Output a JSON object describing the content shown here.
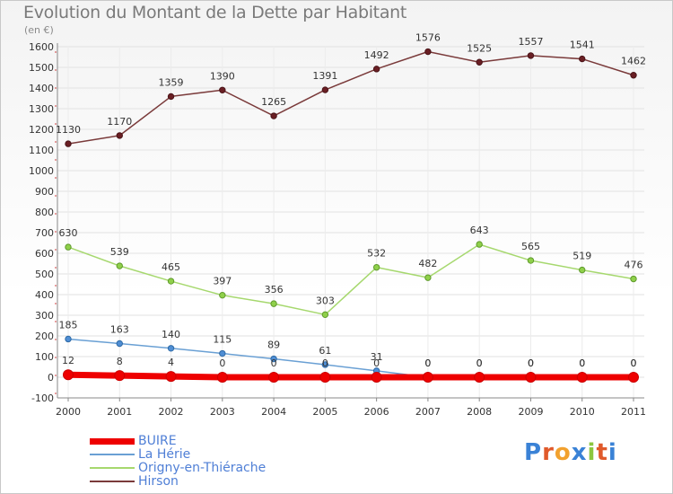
{
  "header": {
    "title": "Evolution du Montant de la Dette par Habitant",
    "subtitle": "(en €)"
  },
  "logo": {
    "letters": [
      "P",
      "r",
      "o",
      "x",
      "i",
      "t",
      "i"
    ],
    "colors": [
      "#3a82d6",
      "#e05a2b",
      "#f2a12e",
      "#3a82d6",
      "#8cc63f",
      "#e05a2b",
      "#3a82d6"
    ]
  },
  "chart_data": {
    "type": "line",
    "title": "Evolution du Montant de la Dette par Habitant",
    "ylabel": "(en €)",
    "xlabel": "",
    "ylim": [
      -100,
      1600
    ],
    "yticks": [
      -100,
      0,
      100,
      200,
      300,
      400,
      500,
      600,
      700,
      800,
      900,
      1000,
      1100,
      1200,
      1300,
      1400,
      1500,
      1600
    ],
    "x": [
      "2000",
      "2001",
      "2002",
      "2003",
      "2004",
      "2005",
      "2006",
      "2007",
      "2008",
      "2009",
      "2010",
      "2011"
    ],
    "grid": true,
    "legend_position": "bottom-left",
    "series": [
      {
        "name": "BUIRE",
        "color": "#ee0000",
        "values": [
          12,
          8,
          4,
          0,
          0,
          0,
          0,
          0,
          0,
          0,
          0,
          0
        ],
        "labels": [
          "12",
          "8",
          "4",
          "0",
          "0",
          "0",
          "0",
          "0",
          "0",
          "0",
          "0",
          "0"
        ]
      },
      {
        "name": "La Hérie",
        "color": "#6aa0d4",
        "values": [
          185,
          163,
          140,
          115,
          89,
          61,
          31,
          0,
          0,
          0,
          0,
          0
        ],
        "labels": [
          "185",
          "163",
          "140",
          "115",
          "89",
          "61",
          "31",
          "0",
          "0",
          "0",
          "0",
          "0"
        ]
      },
      {
        "name": "Origny-en-Thiérache",
        "color": "#a6d86e",
        "values": [
          630,
          539,
          465,
          397,
          356,
          303,
          532,
          482,
          643,
          565,
          519,
          476
        ],
        "labels": [
          "630",
          "539",
          "465",
          "397",
          "356",
          "303",
          "532",
          "482",
          "643",
          "565",
          "519",
          "476"
        ]
      },
      {
        "name": "Hirson",
        "color": "#7a3a3a",
        "values": [
          1130,
          1170,
          1359,
          1390,
          1265,
          1391,
          1492,
          1576,
          1525,
          1557,
          1541,
          1462
        ],
        "labels": [
          "1130",
          "1170",
          "1359",
          "1390",
          "1265",
          "1391",
          "1492",
          "1576",
          "1525",
          "1557",
          "1541",
          "1462"
        ]
      }
    ]
  }
}
